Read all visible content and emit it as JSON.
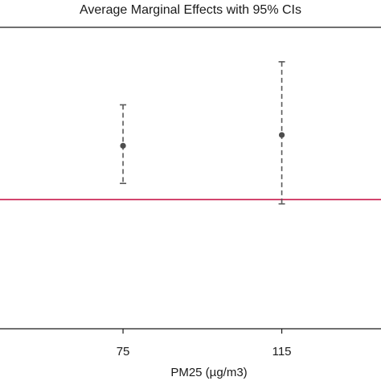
{
  "colors": {
    "background": "#ffffff",
    "frame": "#1a1a1a",
    "ci_line": "#595959",
    "point": "#4d4d4d",
    "reference_line": "#c8194b"
  },
  "chart_data": {
    "type": "scatter",
    "title": "Average Marginal Effects with 95% CIs",
    "xlabel": "PM25 (µg/m3)",
    "ylabel": "",
    "x_ticks": [
      "75",
      "115"
    ],
    "x": [
      75,
      115
    ],
    "xlim": [
      44,
      140
    ],
    "ylim": [
      -1.2,
      1.6
    ],
    "reference_line_y": 0,
    "series": [
      {
        "estimates": [
          0.5,
          0.6
        ],
        "ci_lower": [
          0.15,
          -0.04
        ],
        "ci_upper": [
          0.88,
          1.28
        ]
      }
    ],
    "grid": false,
    "legend": "none"
  }
}
